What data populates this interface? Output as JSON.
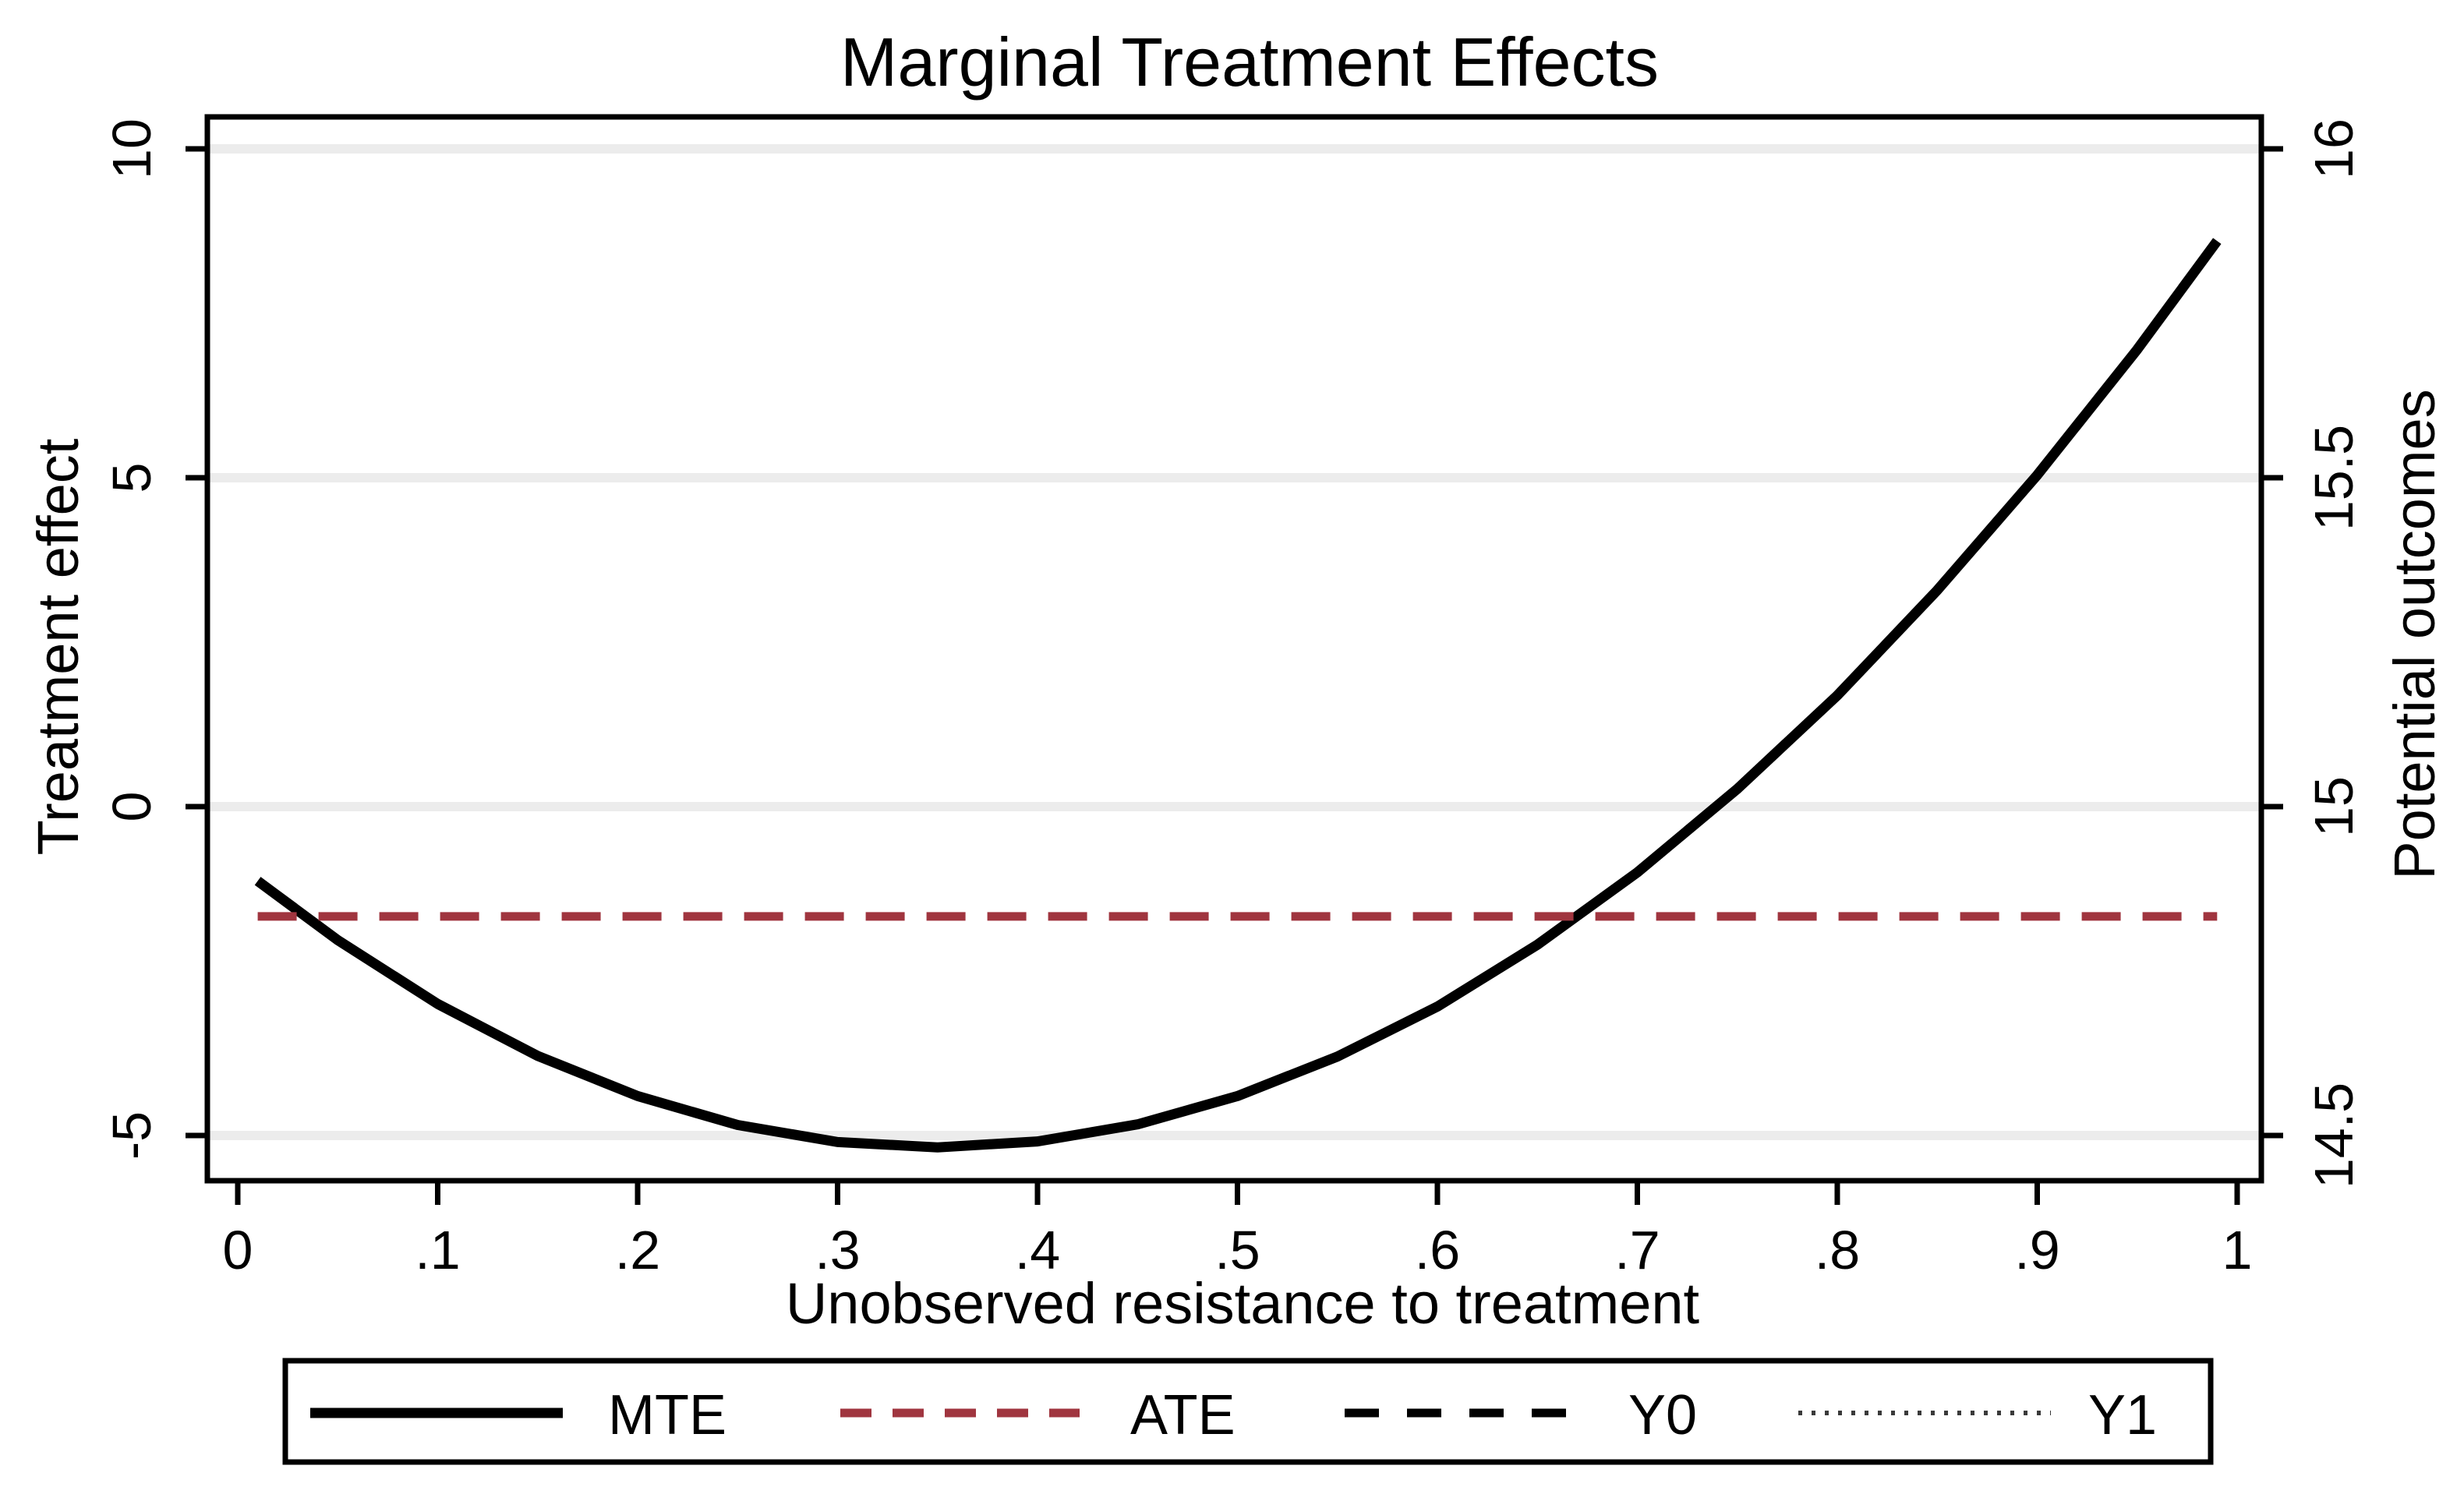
{
  "chart": {
    "title": "Marginal Treatment Effects",
    "x_axis": {
      "title": "Unobserved resistance to treatment",
      "tick_labels": [
        "0",
        ".1",
        ".2",
        ".3",
        ".4",
        ".5",
        ".6",
        ".7",
        ".8",
        ".9",
        "1"
      ],
      "tick_values": [
        0,
        0.1,
        0.2,
        0.3,
        0.4,
        0.5,
        0.6,
        0.7,
        0.8,
        0.9,
        1
      ]
    },
    "y_left": {
      "title": "Treatment effect",
      "tick_labels": [
        "-5",
        "0",
        "5",
        "10"
      ],
      "tick_values": [
        -5,
        0,
        5,
        10
      ]
    },
    "y_right": {
      "title": "Potential outcomes",
      "tick_labels": [
        "14.5",
        "15",
        "15.5",
        "16"
      ],
      "tick_values": [
        14.5,
        15,
        15.5,
        16
      ]
    },
    "legend": [
      {
        "label": "MTE",
        "style": "solid",
        "color": "#000000"
      },
      {
        "label": "ATE",
        "style": "dashed",
        "color": "#a0353f"
      },
      {
        "label": "Y0",
        "style": "dashed",
        "color": "#000000"
      },
      {
        "label": "Y1",
        "style": "dotted",
        "color": "#3a3a3a"
      }
    ],
    "colors": {
      "mte_line": "#000000",
      "ate_line": "#a0353f",
      "gridline": "#ececec",
      "axis": "#000000",
      "background": "#ffffff"
    }
  },
  "chart_data": {
    "type": "line",
    "title": "Marginal Treatment Effects",
    "xlabel": "Unobserved resistance to treatment",
    "ylabel_left": "Treatment effect",
    "ylabel_right": "Potential outcomes",
    "xlim": [
      -0.018,
      1.012
    ],
    "ylim_left": [
      -5.7,
      10.5
    ],
    "ylim_right": [
      14.43,
      16.05
    ],
    "x_ticks": [
      0,
      0.1,
      0.2,
      0.3,
      0.4,
      0.5,
      0.6,
      0.7,
      0.8,
      0.9,
      1
    ],
    "y_left_ticks": [
      -5,
      0,
      5,
      10
    ],
    "y_right_ticks": [
      14.5,
      15,
      15.5,
      16
    ],
    "grid": "horizontal-only",
    "legend_position": "bottom",
    "series": [
      {
        "name": "MTE",
        "axis": "left",
        "style": "solid",
        "color": "#000000",
        "line_width": 13,
        "x": [
          0.01,
          0.05,
          0.1,
          0.15,
          0.2,
          0.25,
          0.3,
          0.35,
          0.4,
          0.45,
          0.5,
          0.55,
          0.6,
          0.65,
          0.7,
          0.75,
          0.8,
          0.85,
          0.9,
          0.95,
          0.99
        ],
        "y": [
          -1.13,
          -2.03,
          -3.0,
          -3.79,
          -4.4,
          -4.84,
          -5.1,
          -5.18,
          -5.09,
          -4.83,
          -4.4,
          -3.8,
          -3.04,
          -2.1,
          -1.0,
          0.27,
          1.69,
          3.29,
          5.04,
          6.95,
          8.6
        ]
      },
      {
        "name": "ATE",
        "axis": "left",
        "style": "dashed",
        "color": "#a0353f",
        "line_width": 11,
        "x": [
          0.01,
          0.99
        ],
        "y": [
          -1.67,
          -1.67
        ]
      },
      {
        "name": "Y0",
        "axis": "right",
        "style": "dashed",
        "color": "#000000",
        "line_width": 11,
        "visible_in_plot": false,
        "x": [],
        "y": []
      },
      {
        "name": "Y1",
        "axis": "right",
        "style": "dotted",
        "color": "#3a3a3a",
        "line_width": 6,
        "visible_in_plot": false,
        "x": [],
        "y": []
      }
    ]
  }
}
